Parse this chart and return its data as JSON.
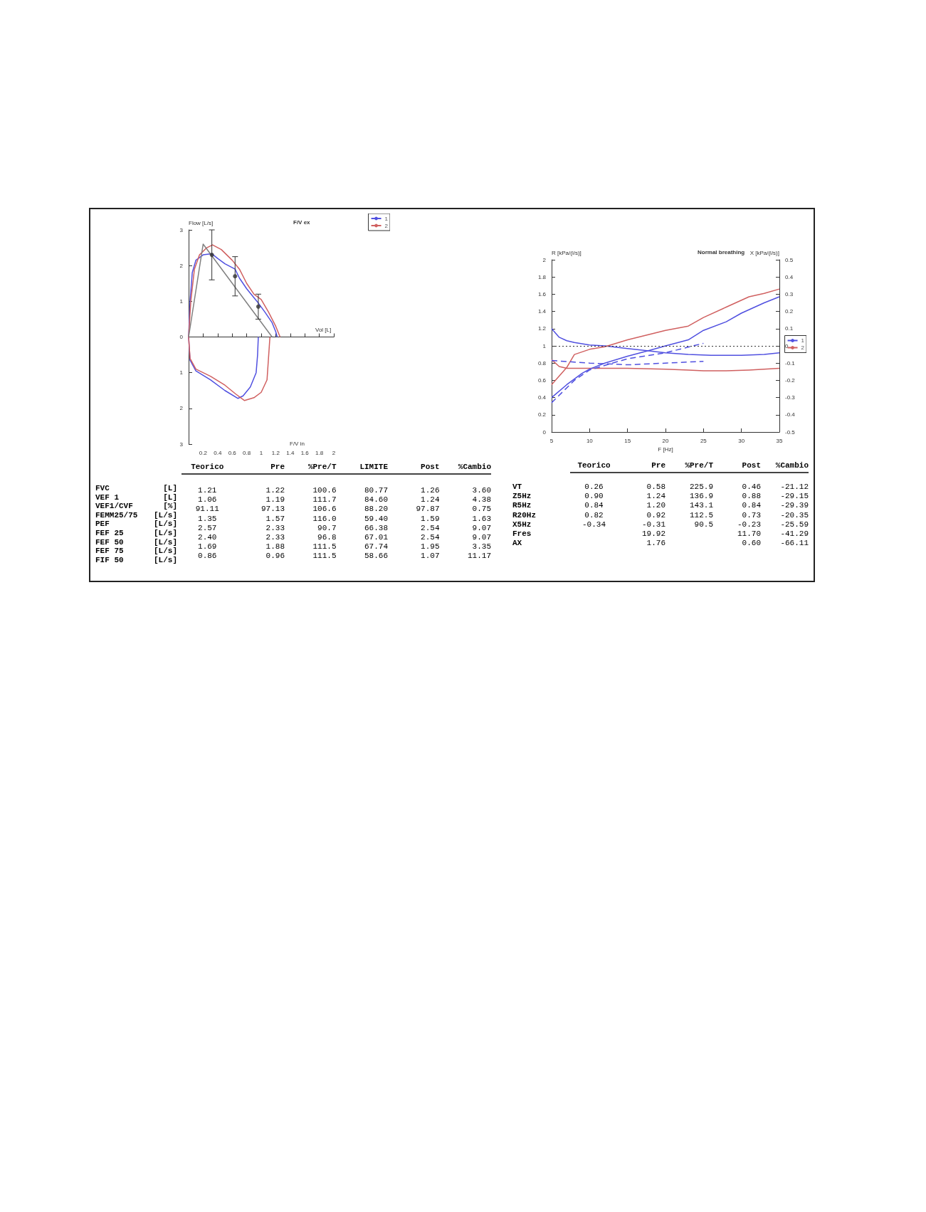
{
  "chart_data": [
    {
      "type": "line",
      "title": "F/V ex",
      "xlabel": "Vol [L]",
      "ylabel": "Flow [L/s]",
      "annotations": [
        "F/V in"
      ],
      "legend": "top right",
      "xlim": [
        0,
        2.0
      ],
      "xticks": [
        0.2,
        0.4,
        0.6,
        0.8,
        1.0,
        1.2,
        1.4,
        1.6,
        1.8,
        2.0
      ],
      "ylim": [
        -3,
        3
      ],
      "yticks": [
        {
          "value": -3,
          "label": "3"
        },
        {
          "value": -2,
          "label": "2"
        },
        {
          "value": -1,
          "label": "1"
        },
        0,
        1,
        2,
        3
      ],
      "series": [
        {
          "name": "1",
          "color": "#5050e0",
          "x": [
            0.96,
            0.95,
            0.93,
            0.85,
            0.75,
            0.68,
            0.5,
            0.3,
            0.1,
            0.02,
            0,
            0.02,
            0.05,
            0.1,
            0.2,
            0.32,
            0.4,
            0.5,
            0.64,
            0.7,
            0.8,
            0.96,
            1.05,
            1.15,
            1.2,
            1.22
          ],
          "values": [
            0,
            -0.5,
            -1.0,
            -1.4,
            -1.65,
            -1.72,
            -1.5,
            -1.2,
            -0.95,
            -0.65,
            0,
            1.0,
            1.8,
            2.15,
            2.3,
            2.33,
            2.2,
            2.05,
            1.9,
            1.65,
            1.35,
            0.95,
            0.7,
            0.4,
            0.15,
            0
          ]
        },
        {
          "name": "2",
          "color": "#d06060",
          "x": [
            1.12,
            1.1,
            1.08,
            1.0,
            0.9,
            0.77,
            0.65,
            0.5,
            0.3,
            0.1,
            0.02,
            0,
            0.03,
            0.08,
            0.15,
            0.25,
            0.33,
            0.45,
            0.6,
            0.7,
            0.8,
            0.9,
            1.0,
            1.1,
            1.2,
            1.26
          ],
          "values": [
            0,
            -0.6,
            -1.2,
            -1.55,
            -1.7,
            -1.78,
            -1.6,
            -1.35,
            -1.1,
            -0.9,
            -0.6,
            0,
            1.0,
            1.9,
            2.3,
            2.5,
            2.58,
            2.45,
            2.15,
            1.9,
            1.5,
            1.2,
            1.05,
            0.7,
            0.3,
            0
          ]
        },
        {
          "color": "#808080",
          "x": [
            0,
            0.2,
            1.15
          ],
          "values": [
            0,
            2.6,
            0
          ]
        },
        {
          "type": "scatter",
          "color": "#333333",
          "x": [
            0.32,
            0.64,
            0.96
          ],
          "values": [
            2.3,
            1.7,
            0.85
          ],
          "errors": [
            [
              1.6,
              3.0
            ],
            [
              1.15,
              2.25
            ],
            [
              0.5,
              1.2
            ]
          ]
        }
      ]
    },
    {
      "type": "line",
      "title": "Normal breathing",
      "xlabel": "F [Hz]",
      "ylabel": "R [kPa/(l/s)]",
      "y2label": "X [kPa/(l/s)]",
      "legend": "right",
      "xlim": [
        5,
        35
      ],
      "xticks": [
        5,
        10,
        15,
        20,
        25,
        30,
        35
      ],
      "ylim": [
        0,
        2.0
      ],
      "yticks": [
        0.0,
        0.2,
        0.4,
        0.6,
        0.8,
        1.0,
        1.2,
        1.4,
        1.6,
        1.8,
        2.0
      ],
      "y2lim": [
        -0.5,
        0.5
      ],
      "y2ticks": [
        -0.5,
        -0.4,
        -0.3,
        -0.2,
        -0.1,
        0.0,
        0.1,
        0.2,
        0.3,
        0.4,
        0.5
      ],
      "ref_lines": [
        {
          "axis": "y",
          "value": 1.0,
          "color": "#333333",
          "line_style": "dotted"
        }
      ],
      "series": [
        {
          "name": "1",
          "color": "#5050e0",
          "x": [
            5,
            6,
            7,
            8,
            10,
            12,
            15,
            18,
            20,
            23,
            26,
            30,
            33,
            35
          ],
          "values": [
            1.2,
            1.1,
            1.06,
            1.04,
            1.01,
            1.0,
            0.97,
            0.94,
            0.92,
            0.9,
            0.89,
            0.89,
            0.9,
            0.92
          ]
        },
        {
          "name": "2",
          "color": "#d06060",
          "x": [
            5,
            6,
            7,
            10,
            15,
            20,
            23,
            25,
            28,
            31,
            33,
            35
          ],
          "values": [
            0.84,
            0.76,
            0.74,
            0.74,
            0.74,
            0.73,
            0.72,
            0.71,
            0.71,
            0.72,
            0.73,
            0.74
          ]
        },
        {
          "color": "#5050e0",
          "axis": "y2",
          "x": [
            5,
            7,
            9,
            10,
            12,
            15,
            18,
            20,
            23,
            25,
            28,
            30,
            33,
            35
          ],
          "values": [
            -0.3,
            -0.225,
            -0.16,
            -0.135,
            -0.1,
            -0.06,
            -0.025,
            0,
            0.035,
            0.09,
            0.14,
            0.19,
            0.25,
            0.285
          ]
        },
        {
          "color": "#d06060",
          "axis": "y2",
          "x": [
            5,
            7,
            8,
            10,
            12,
            15,
            20,
            23,
            25,
            28,
            31,
            33,
            35
          ],
          "values": [
            -0.225,
            -0.125,
            -0.05,
            -0.02,
            -0.005,
            0.035,
            0.09,
            0.115,
            0.165,
            0.225,
            0.285,
            0.305,
            0.33
          ]
        },
        {
          "color": "#5050e0",
          "line_style": "dashed",
          "x": [
            5,
            10,
            13,
            15,
            20,
            25
          ],
          "values": [
            0.83,
            0.8,
            0.79,
            0.78,
            0.8,
            0.82
          ]
        },
        {
          "color": "#5050e0",
          "line_style": "dashed",
          "axis": "y2",
          "x": [
            5,
            8,
            10,
            13,
            15,
            20,
            25
          ],
          "values": [
            -0.33,
            -0.2,
            -0.14,
            -0.1,
            -0.075,
            -0.04,
            0.015
          ]
        }
      ]
    },
    {
      "type": "other",
      "categories": [
        "Teorico",
        "Pre",
        "%Pre/T",
        "LIMITE",
        "Post",
        "%Cambio"
      ],
      "y_categories": [
        "FVC",
        "VEF 1",
        "VEF1/CVF",
        "FEMM25/75",
        "PEF",
        "FEF 25",
        "FEF 50",
        "FEF 75",
        "FIF 50"
      ],
      "y2_categories": [
        "[L]",
        "[L]",
        "[%]",
        "[L/s]",
        "[L/s]",
        "[L/s]",
        "[L/s]",
        "[L/s]",
        "[L/s]"
      ],
      "cell_labels": [
        [
          "1.21",
          "1.22",
          "100.6",
          "80.77",
          "1.26",
          "3.60"
        ],
        [
          "1.06",
          "1.19",
          "111.7",
          "84.60",
          "1.24",
          "4.38"
        ],
        [
          "91.11",
          "97.13",
          "106.6",
          "88.20",
          "97.87",
          "0.75"
        ],
        [
          "1.35",
          "1.57",
          "116.0",
          "59.40",
          "1.59",
          "1.63"
        ],
        [
          "2.57",
          "2.33",
          "90.7",
          "66.38",
          "2.54",
          "9.07"
        ],
        [
          "2.40",
          "2.33",
          "96.8",
          "67.01",
          "2.54",
          "9.07"
        ],
        [
          "1.69",
          "1.88",
          "111.5",
          "67.74",
          "1.95",
          "3.35"
        ],
        [
          "0.86",
          "0.96",
          "111.5",
          "58.66",
          "1.07",
          "11.17"
        ]
      ]
    },
    {
      "type": "other",
      "categories": [
        "Teorico",
        "Pre",
        "%Pre/T",
        "Post",
        "%Cambio"
      ],
      "y_categories": [
        "VT",
        "Z5Hz",
        "R5Hz",
        "R20Hz",
        "X5Hz",
        "Fres",
        "AX"
      ],
      "cell_labels": [
        [
          "0.26",
          "0.58",
          "225.9",
          "0.46",
          "-21.12"
        ],
        [
          "0.90",
          "1.24",
          "136.9",
          "0.88",
          "-29.15"
        ],
        [
          "0.84",
          "1.20",
          "143.1",
          "0.84",
          "-29.39"
        ],
        [
          "0.82",
          "0.92",
          "112.5",
          "0.73",
          "-20.35"
        ],
        [
          "-0.34",
          "-0.31",
          "90.5",
          "-0.23",
          "-25.59"
        ],
        [
          null,
          "19.92",
          null,
          "11.70",
          "-41.29"
        ],
        [
          null,
          "1.76",
          null,
          "0.60",
          "-66.11"
        ]
      ]
    }
  ]
}
